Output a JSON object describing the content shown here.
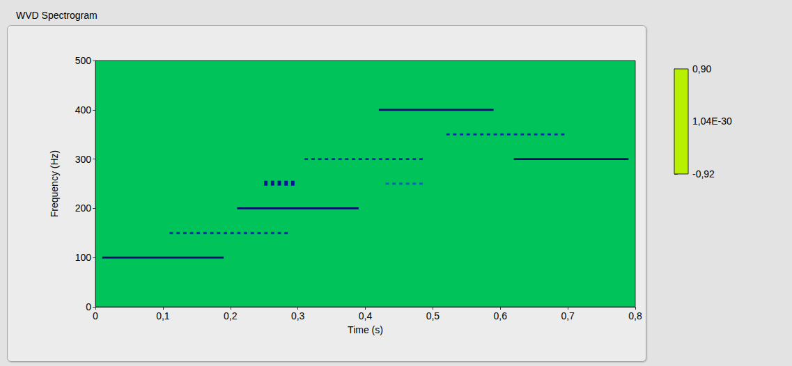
{
  "chart_data": {
    "type": "heatmap",
    "title": "WVD Spectrogram",
    "x_label": "Time (s)",
    "y_label": "Frequency (Hz)",
    "xlim": [
      0,
      0.8
    ],
    "xticks": [
      0,
      {
        "value": 0.1,
        "label": "0,1"
      },
      {
        "value": 0.2,
        "label": "0,2"
      },
      {
        "value": 0.3,
        "label": "0,3"
      },
      {
        "value": 0.4,
        "label": "0,4"
      },
      {
        "value": 0.5,
        "label": "0,5"
      },
      {
        "value": 0.6,
        "label": "0,6"
      },
      {
        "value": 0.7,
        "label": "0,7"
      },
      {
        "value": 0.8,
        "label": "0,8"
      }
    ],
    "ylim": [
      0,
      500
    ],
    "yticks": [
      0,
      100,
      200,
      300,
      400,
      500
    ],
    "grid": false,
    "color_range": [
      -0.92,
      0.9
    ],
    "color_ticks": [
      {
        "value": 0.9,
        "label": "0,90"
      },
      {
        "value": 1.04e-30,
        "label": "1,04E-30"
      },
      {
        "value": -0.92,
        "label": "-0,92"
      }
    ],
    "cells": [
      [
        0.01,
        0.19,
        98,
        102,
        0.8
      ],
      [
        0.21,
        0.39,
        198,
        202,
        0.8
      ],
      [
        0.42,
        0.59,
        398,
        402,
        0.8
      ],
      [
        0.62,
        0.79,
        298,
        302,
        0.8
      ],
      [
        0.11,
        0.115,
        148,
        152,
        0.6
      ],
      [
        0.12,
        0.125,
        148,
        152,
        0.6
      ],
      [
        0.13,
        0.135,
        148,
        152,
        0.6
      ],
      [
        0.14,
        0.145,
        148,
        152,
        0.6
      ],
      [
        0.15,
        0.155,
        148,
        152,
        0.6
      ],
      [
        0.16,
        0.165,
        148,
        152,
        0.6
      ],
      [
        0.17,
        0.175,
        148,
        152,
        0.6
      ],
      [
        0.18,
        0.185,
        148,
        152,
        0.6
      ],
      [
        0.19,
        0.195,
        148,
        152,
        0.6
      ],
      [
        0.2,
        0.205,
        148,
        152,
        0.6
      ],
      [
        0.21,
        0.215,
        148,
        152,
        0.6
      ],
      [
        0.22,
        0.225,
        148,
        152,
        0.6
      ],
      [
        0.23,
        0.235,
        148,
        152,
        0.6
      ],
      [
        0.24,
        0.245,
        148,
        152,
        0.6
      ],
      [
        0.25,
        0.255,
        148,
        152,
        0.6
      ],
      [
        0.26,
        0.265,
        148,
        152,
        0.6
      ],
      [
        0.27,
        0.275,
        148,
        152,
        0.6
      ],
      [
        0.28,
        0.285,
        148,
        152,
        0.6
      ],
      [
        0.31,
        0.315,
        298,
        302,
        0.6
      ],
      [
        0.32,
        0.325,
        298,
        302,
        0.6
      ],
      [
        0.33,
        0.335,
        298,
        302,
        0.6
      ],
      [
        0.34,
        0.345,
        298,
        302,
        0.6
      ],
      [
        0.35,
        0.355,
        298,
        302,
        0.6
      ],
      [
        0.36,
        0.365,
        298,
        302,
        0.6
      ],
      [
        0.37,
        0.375,
        298,
        302,
        0.6
      ],
      [
        0.38,
        0.385,
        298,
        302,
        0.6
      ],
      [
        0.39,
        0.395,
        298,
        302,
        0.6
      ],
      [
        0.4,
        0.405,
        298,
        302,
        0.6
      ],
      [
        0.41,
        0.415,
        298,
        302,
        0.6
      ],
      [
        0.42,
        0.425,
        298,
        302,
        0.6
      ],
      [
        0.43,
        0.435,
        298,
        302,
        0.6
      ],
      [
        0.44,
        0.445,
        298,
        302,
        0.6
      ],
      [
        0.45,
        0.455,
        298,
        302,
        0.6
      ],
      [
        0.46,
        0.465,
        298,
        302,
        0.6
      ],
      [
        0.47,
        0.475,
        298,
        302,
        0.6
      ],
      [
        0.48,
        0.485,
        298,
        302,
        0.6
      ],
      [
        0.52,
        0.525,
        348,
        352,
        0.6
      ],
      [
        0.53,
        0.535,
        348,
        352,
        0.6
      ],
      [
        0.54,
        0.545,
        348,
        352,
        0.6
      ],
      [
        0.55,
        0.555,
        348,
        352,
        0.6
      ],
      [
        0.56,
        0.565,
        348,
        352,
        0.6
      ],
      [
        0.57,
        0.575,
        348,
        352,
        0.6
      ],
      [
        0.58,
        0.585,
        348,
        352,
        0.6
      ],
      [
        0.59,
        0.595,
        348,
        352,
        0.6
      ],
      [
        0.6,
        0.605,
        348,
        352,
        0.6
      ],
      [
        0.61,
        0.615,
        348,
        352,
        0.6
      ],
      [
        0.62,
        0.625,
        348,
        352,
        0.6
      ],
      [
        0.63,
        0.635,
        348,
        352,
        0.6
      ],
      [
        0.64,
        0.645,
        348,
        352,
        0.6
      ],
      [
        0.65,
        0.655,
        348,
        352,
        0.6
      ],
      [
        0.66,
        0.665,
        348,
        352,
        0.6
      ],
      [
        0.67,
        0.675,
        348,
        352,
        0.6
      ],
      [
        0.68,
        0.685,
        348,
        352,
        0.6
      ],
      [
        0.69,
        0.695,
        348,
        352,
        0.6
      ],
      [
        0.25,
        0.255,
        246,
        256,
        0.7
      ],
      [
        0.26,
        0.265,
        246,
        256,
        0.7
      ],
      [
        0.27,
        0.275,
        246,
        256,
        0.7
      ],
      [
        0.28,
        0.285,
        246,
        256,
        0.7
      ],
      [
        0.29,
        0.295,
        246,
        256,
        0.7
      ],
      [
        0.43,
        0.435,
        248,
        252,
        0.35
      ],
      [
        0.44,
        0.445,
        248,
        252,
        0.35
      ],
      [
        0.45,
        0.455,
        248,
        252,
        0.35
      ],
      [
        0.46,
        0.465,
        248,
        252,
        0.35
      ],
      [
        0.47,
        0.475,
        248,
        252,
        0.35
      ],
      [
        0.48,
        0.485,
        248,
        252,
        0.35
      ]
    ]
  }
}
